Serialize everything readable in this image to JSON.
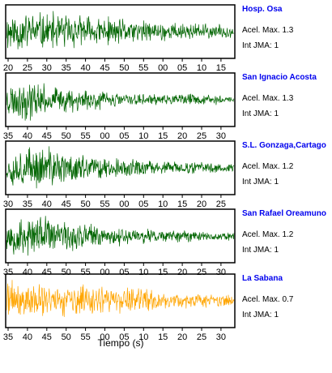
{
  "chart_data": {
    "type": "line",
    "xlabel": "Tiempo (s)",
    "name_color": "#0000ee",
    "panels": [
      {
        "station": "Hosp. Osa",
        "acel": "Acel. Max. 1.3",
        "jma": "Int JMA: 1",
        "color": "#006400",
        "tick_labels": [
          "20",
          "25",
          "30",
          "35",
          "40",
          "45",
          "50",
          "55",
          "00",
          "05",
          "10",
          "15"
        ],
        "envelope": [
          1.0,
          0.95,
          0.9,
          0.85,
          0.75,
          0.65,
          0.55,
          0.5,
          0.45,
          0.4,
          0.35,
          0.3
        ],
        "seed": 11
      },
      {
        "station": "San Ignacio Acosta",
        "acel": "Acel. Max. 1.3",
        "jma": "Int JMA: 1",
        "color": "#006400",
        "tick_labels": [
          "35",
          "40",
          "45",
          "50",
          "55",
          "00",
          "05",
          "10",
          "15",
          "20",
          "25",
          "30"
        ],
        "envelope": [
          0.75,
          1.0,
          0.65,
          0.55,
          0.6,
          0.35,
          0.3,
          0.25,
          0.22,
          0.3,
          0.25,
          0.2
        ],
        "seed": 23
      },
      {
        "station": "S.L. Gonzaga,Cartago",
        "acel": "Acel. Max. 1.2",
        "jma": "Int JMA: 1",
        "color": "#006400",
        "tick_labels": [
          "30",
          "35",
          "40",
          "45",
          "50",
          "55",
          "00",
          "05",
          "10",
          "15",
          "20",
          "25"
        ],
        "envelope": [
          0.8,
          0.95,
          1.0,
          0.75,
          0.6,
          0.5,
          0.4,
          0.35,
          0.3,
          0.28,
          0.25,
          0.22
        ],
        "seed": 37
      },
      {
        "station": "San Rafael Oreamuno",
        "acel": "Acel. Max. 1.2",
        "jma": "Int JMA: 1",
        "color": "#006400",
        "tick_labels": [
          "35",
          "40",
          "45",
          "50",
          "55",
          "00",
          "05",
          "10",
          "15",
          "20",
          "25",
          "30"
        ],
        "envelope": [
          0.9,
          1.0,
          0.85,
          0.7,
          0.6,
          0.5,
          0.4,
          0.35,
          0.3,
          0.28,
          0.25,
          0.22
        ],
        "seed": 53
      },
      {
        "station": "La Sabana",
        "acel": "Acel. Max. 0.7",
        "jma": "Int JMA: 1",
        "color": "#ffa500",
        "tick_labels": [
          "35",
          "40",
          "45",
          "50",
          "55",
          "00",
          "05",
          "10",
          "15",
          "20",
          "25",
          "30"
        ],
        "envelope": [
          1.0,
          0.9,
          0.85,
          0.8,
          0.7,
          0.6,
          0.75,
          0.5,
          0.4,
          0.35,
          0.3,
          0.28
        ],
        "seed": 71
      }
    ]
  }
}
